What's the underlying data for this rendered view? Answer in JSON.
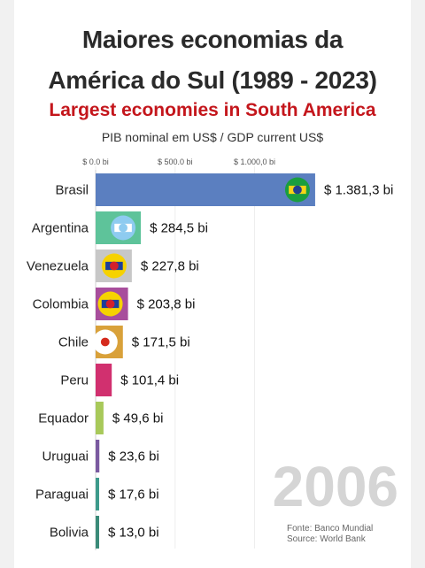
{
  "header": {
    "title_line1": "Maiores economias da",
    "title_line2": "América do Sul (1989 - 2023)",
    "subtitle": "Largest economies in South America",
    "unit": "PIB nominal em US$ / GDP current US$"
  },
  "chart_data": {
    "type": "bar",
    "orientation": "horizontal",
    "categories": [
      "Brasil",
      "Argentina",
      "Venezuela",
      "Colombia",
      "Chile",
      "Peru",
      "Equador",
      "Uruguai",
      "Paraguai",
      "Bolivia"
    ],
    "values": [
      1381.3,
      284.5,
      227.8,
      203.8,
      171.5,
      101.4,
      49.6,
      23.6,
      17.6,
      13.0
    ],
    "value_labels": [
      "$ 1.381,3 bi",
      "$ 284,5 bi",
      "$ 227,8 bi",
      "$ 203,8 bi",
      "$ 171,5 bi",
      "$ 101,4 bi",
      "$ 49,6 bi",
      "$ 23,6 bi",
      "$ 17,6 bi",
      "$ 13,0 bi"
    ],
    "xticks": [
      0,
      500,
      1000
    ],
    "xtick_labels": [
      "$ 0.0 bi",
      "$ 500.0 bi",
      "$ 1.000,0 bi"
    ],
    "xlim": [
      0,
      1500
    ],
    "colors": [
      "#5b7fc0",
      "#5ec39a",
      "#c7c7c7",
      "#a84e9c",
      "#d9a13a",
      "#d1306f",
      "#a8c95a",
      "#7a5aa0",
      "#3d9a8b",
      "#3a8a78"
    ],
    "year": "2006",
    "source_line1": "Fonte: Banco Mundial",
    "source_line2": "Source: World Bank"
  }
}
